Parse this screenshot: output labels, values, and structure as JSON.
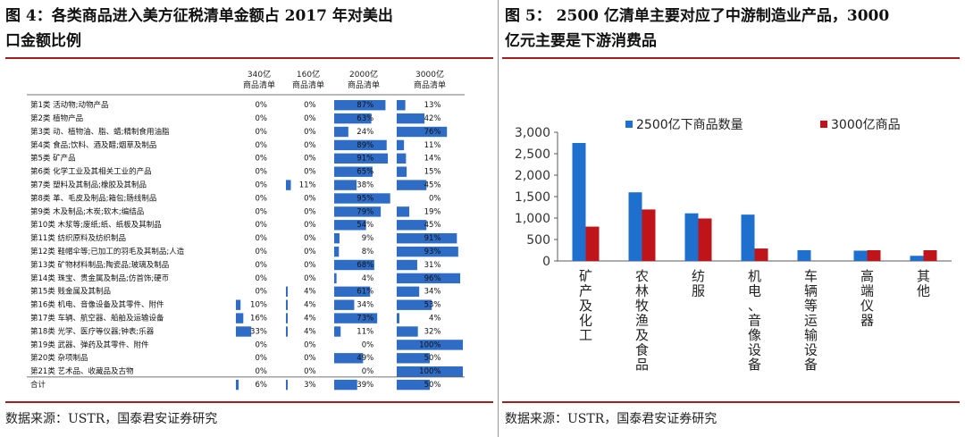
{
  "left": {
    "title_line1": "图 4：各类商品进入美方征税清单金额占 2017 年对美出",
    "title_line2": "口金额比例",
    "source": "数据来源：USTR，国泰君安证券研究",
    "column_headers": [
      "340亿商品清单",
      "160亿商品清单",
      "2000亿商品清单",
      "3000亿商品清单"
    ],
    "colors": {
      "bar": "#2e6cc6"
    },
    "chart_data": {
      "type": "table",
      "rows": [
        {
          "label": "第1类  活动物;动物产品",
          "values": [
            0,
            0,
            87,
            13
          ]
        },
        {
          "label": "第2类  植物产品",
          "values": [
            0,
            0,
            63,
            42
          ]
        },
        {
          "label": "第3类  动、植物油、脂、蜡;精制食用油脂",
          "values": [
            0,
            0,
            24,
            76
          ]
        },
        {
          "label": "第4类  食品;饮料、酒及醋;烟草及制品",
          "values": [
            0,
            0,
            89,
            11
          ]
        },
        {
          "label": "第5类  矿产品",
          "values": [
            0,
            0,
            91,
            14
          ]
        },
        {
          "label": "第6类  化学工业及其相关工业的产品",
          "values": [
            0,
            0,
            65,
            15
          ]
        },
        {
          "label": "第7类  塑料及其制品;橡胶及其制品",
          "values": [
            0,
            11,
            38,
            45
          ]
        },
        {
          "label": "第8类  革、毛皮及制品;箱包;肠线制品",
          "values": [
            0,
            0,
            95,
            0
          ]
        },
        {
          "label": "第9类  木及制品;木炭;软木;编结品",
          "values": [
            0,
            0,
            79,
            19
          ]
        },
        {
          "label": "第10类  木浆等;废纸;纸、纸板及其制品",
          "values": [
            0,
            0,
            54,
            45
          ]
        },
        {
          "label": "第11类  纺织原料及纺织制品",
          "values": [
            0,
            0,
            9,
            91
          ]
        },
        {
          "label": "第12类  鞋帽伞等;已加工的羽毛及其制品;人造",
          "values": [
            0,
            0,
            8,
            93
          ]
        },
        {
          "label": "第13类  矿物材料制品;陶瓷品;玻璃及制品",
          "values": [
            0,
            0,
            68,
            31
          ]
        },
        {
          "label": "第14类  珠宝、贵金属及制品;仿首饰;硬币",
          "values": [
            0,
            0,
            4,
            96
          ]
        },
        {
          "label": "第15类  贱金属及其制品",
          "values": [
            0,
            4,
            61,
            34
          ]
        },
        {
          "label": "第16类  机电、音像设备及其零件、附件",
          "values": [
            10,
            4,
            34,
            53
          ]
        },
        {
          "label": "第17类  车辆、航空器、船舶及运输设备",
          "values": [
            16,
            4,
            73,
            4
          ]
        },
        {
          "label": "第18类  光学、医疗等仪器;钟表;乐器",
          "values": [
            33,
            4,
            11,
            32
          ]
        },
        {
          "label": "第19类  武器、弹药及其零件、附件",
          "values": [
            0,
            0,
            0,
            100
          ]
        },
        {
          "label": "第20类  杂项制品",
          "values": [
            0,
            0,
            49,
            50
          ]
        },
        {
          "label": "第21类  艺术品、收藏品及古物",
          "values": [
            0,
            0,
            0,
            100
          ]
        },
        {
          "label": "合计",
          "values": [
            6,
            3,
            39,
            50
          ]
        }
      ]
    }
  },
  "right": {
    "title_line1": "图 5：  2500 亿清单主要对应了中游制造业产品，3000",
    "title_line2": "亿元主要是下游消费品",
    "source": "数据来源：USTR，国泰君安证券研究",
    "colors": {
      "series1": "#1f6fcf",
      "series2": "#c0141b",
      "axis": "#595959"
    },
    "chart_data": {
      "type": "bar",
      "categories": [
        "矿产及化工",
        "农林牧渔及食品",
        "纺服",
        "机电、音像设备",
        "车辆等运输设备",
        "高端仪器",
        "其他"
      ],
      "series": [
        {
          "name": "2500亿下商品数量",
          "values": [
            2750,
            1600,
            1110,
            1080,
            250,
            240,
            120
          ]
        },
        {
          "name": "3000亿商品",
          "values": [
            800,
            1200,
            990,
            290,
            0,
            250,
            250
          ]
        }
      ],
      "ylim": [
        0,
        3000
      ],
      "yticks": [
        0,
        500,
        1000,
        1500,
        2000,
        2500,
        3000
      ],
      "ytick_labels": [
        "0",
        "500",
        "1,000",
        "1,500",
        "2,000",
        "2,500",
        "3,000"
      ],
      "legend_position": "top"
    }
  }
}
